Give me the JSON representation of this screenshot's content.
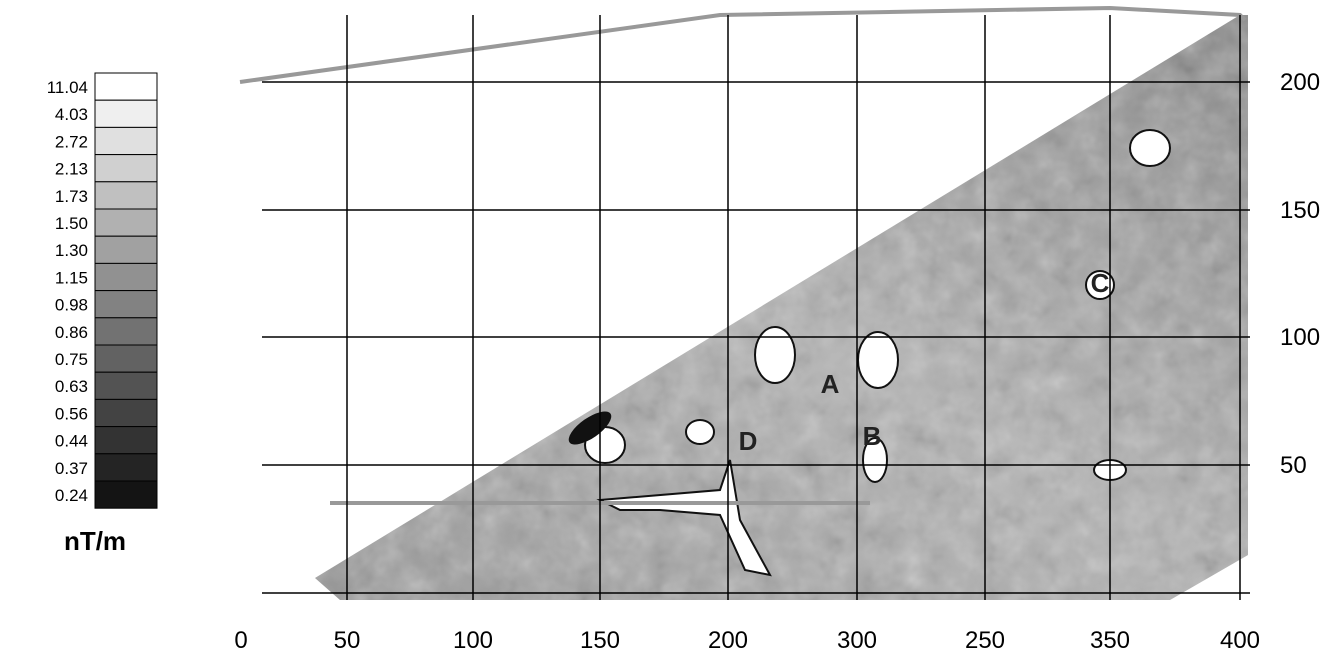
{
  "legend": {
    "values": [
      "11.04",
      "4.03",
      "2.72",
      "2.13",
      "1.73",
      "1.50",
      "1.30",
      "1.15",
      "0.98",
      "0.86",
      "0.75",
      "0.63",
      "0.56",
      "0.44",
      "0.37",
      "0.24"
    ],
    "unit": "nT/m"
  },
  "axes": {
    "x_labels": [
      "0",
      "50",
      "100",
      "150",
      "200",
      "300",
      "250",
      "350",
      "400"
    ],
    "y_labels": [
      "200",
      "150",
      "100",
      "50"
    ]
  },
  "annotations": [
    "A",
    "B",
    "C",
    "D"
  ]
}
